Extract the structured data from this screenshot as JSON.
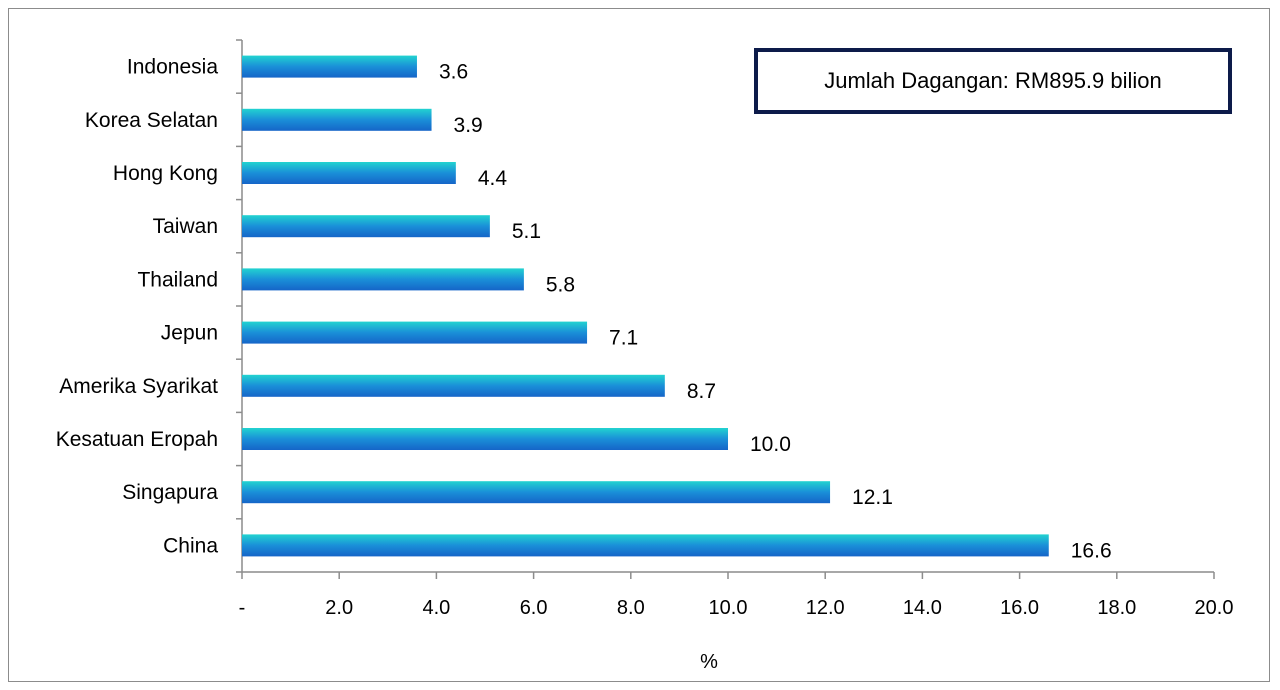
{
  "chart_data": {
    "type": "bar",
    "orientation": "horizontal",
    "categories": [
      "Indonesia",
      "Korea Selatan",
      "Hong Kong",
      "Taiwan",
      "Thailand",
      "Jepun",
      "Amerika Syarikat",
      "Kesatuan Eropah",
      "Singapura",
      "China"
    ],
    "values": [
      3.6,
      3.9,
      4.4,
      5.1,
      5.8,
      7.1,
      8.7,
      10.0,
      12.1,
      16.6
    ],
    "value_labels": [
      "3.6",
      "3.9",
      "4.4",
      "5.1",
      "5.8",
      "7.1",
      "8.7",
      "10.0",
      "12.1",
      "16.6"
    ],
    "xlabel": "%",
    "ylabel": "",
    "xlim": [
      0,
      20
    ],
    "x_ticks": [
      0,
      2,
      4,
      6,
      8,
      10,
      12,
      14,
      16,
      18,
      20
    ],
    "x_tick_labels": [
      "-",
      "2.0",
      "4.0",
      "6.0",
      "8.0",
      "10.0",
      "12.0",
      "14.0",
      "16.0",
      "18.0",
      "20.0"
    ],
    "grid": false,
    "legend": false,
    "colors": {
      "bar_top": "#22d3d0",
      "bar_mid": "#1a8fd8",
      "bar_bottom": "#1565c8",
      "axis": "#8c8c8c",
      "box_border": "#0d1b4a"
    }
  },
  "info_box": {
    "text": "Jumlah Dagangan: RM895.9 bilion"
  }
}
